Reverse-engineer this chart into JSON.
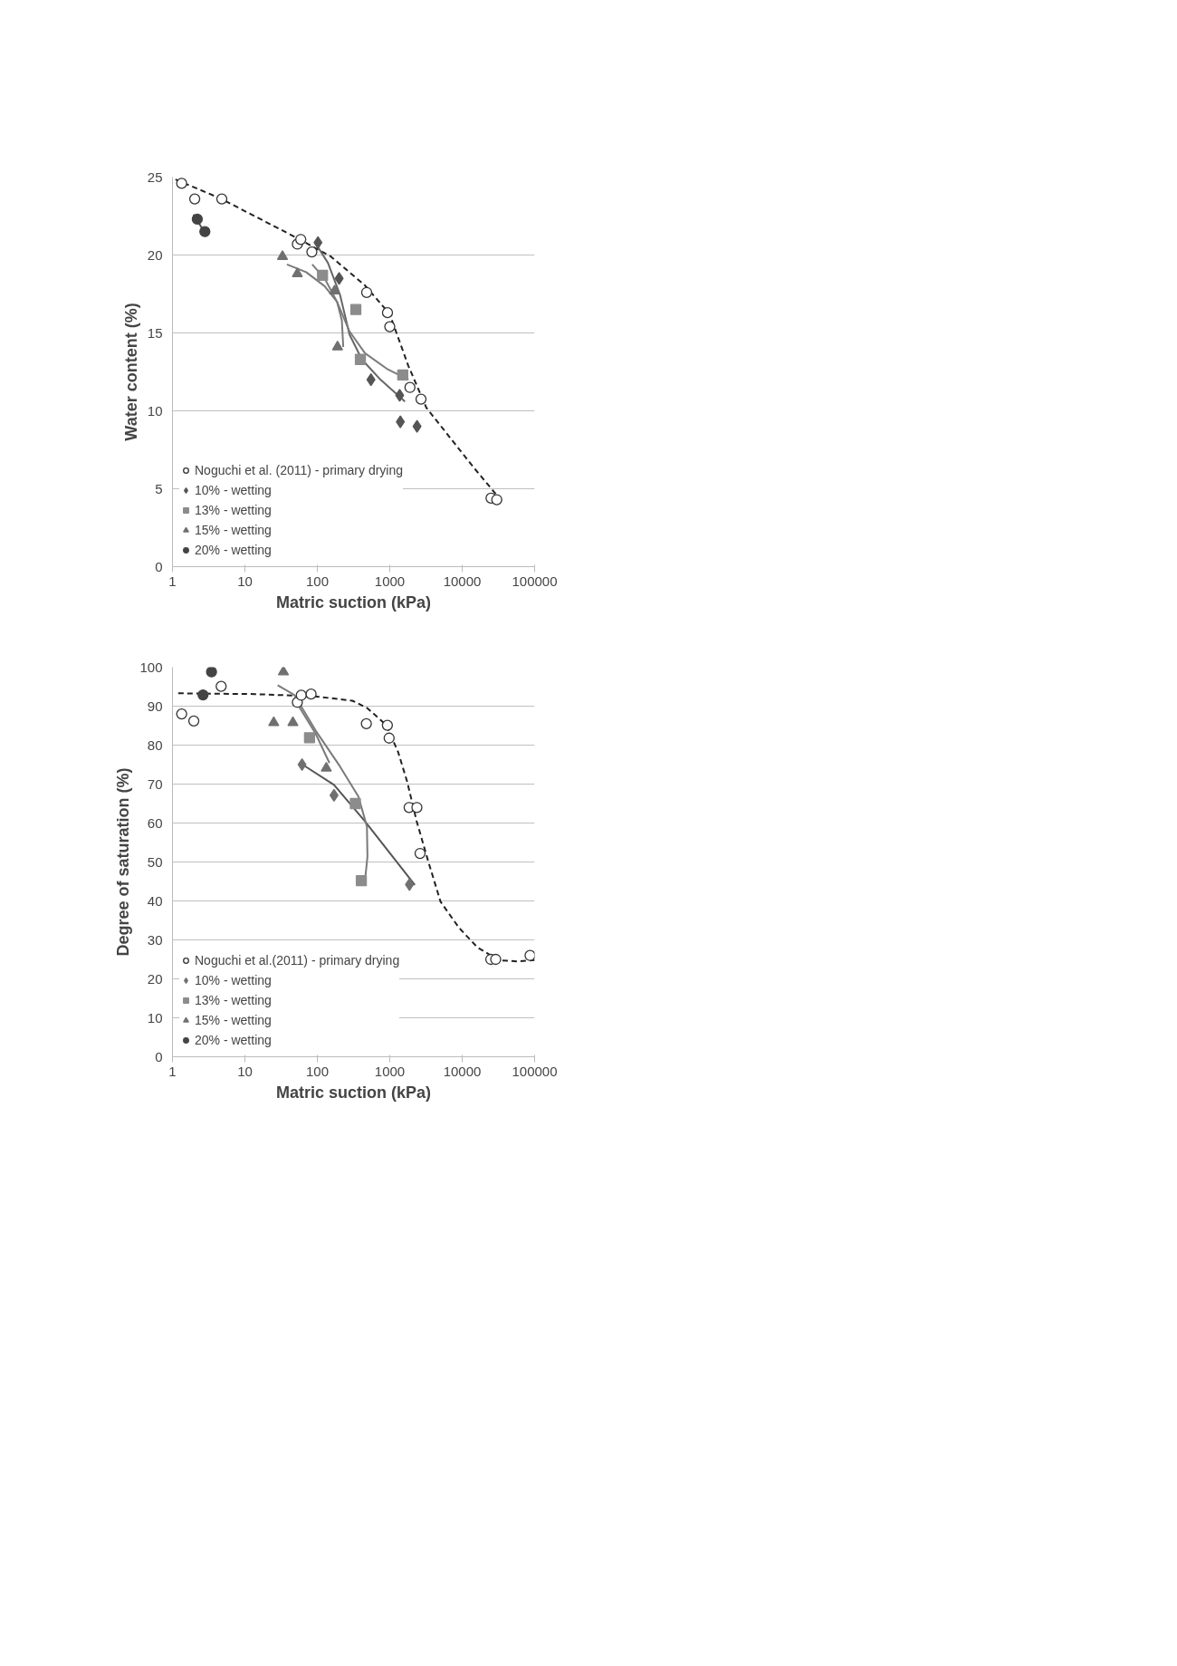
{
  "chart_data": [
    {
      "type": "scatter",
      "xlabel": "Matric suction (kPa)",
      "ylabel": "Water content (%)",
      "log": "x",
      "xlim": [
        1,
        100000
      ],
      "xticks": [
        1,
        10,
        100,
        1000,
        10000,
        100000
      ],
      "ylim": [
        0,
        25
      ],
      "yticks": [
        0,
        5,
        10,
        15,
        20,
        25
      ],
      "grid": "y",
      "legend": "bottom left",
      "series": [
        {
          "name": "Noguchi et al. (2011) - primary drying",
          "color": "#ffffff",
          "marker": "circle",
          "x": [
            1.34,
            2.03,
            4.8,
            53,
            59,
            84,
            480,
            930,
            1000,
            1900,
            2700,
            25000,
            30000
          ],
          "values": [
            24.6,
            23.6,
            23.6,
            20.7,
            21.0,
            20.2,
            17.6,
            16.3,
            15.4,
            11.5,
            10.75,
            4.4,
            4.3
          ]
        },
        {
          "name": "10% - wetting",
          "color": "#555555",
          "marker": "diamond",
          "x": [
            102,
            200,
            550,
            1370,
            1400,
            2380
          ],
          "values": [
            20.8,
            18.5,
            12.0,
            11.0,
            9.3,
            9.0
          ]
        },
        {
          "name": "13% - wetting",
          "color": "#8c8c8c",
          "marker": "square",
          "x": [
            118,
            340,
            393,
            1510
          ],
          "values": [
            18.7,
            16.5,
            13.3,
            12.3
          ]
        },
        {
          "name": "15% - wetting",
          "color": "#707070",
          "marker": "triangle",
          "x": [
            33,
            53,
            173,
            190
          ],
          "values": [
            19.9,
            18.8,
            17.7,
            14.1
          ]
        },
        {
          "name": "20% - wetting",
          "color": "#444444",
          "marker": "circle",
          "x": [
            2.2,
            2.8
          ],
          "values": [
            22.3,
            21.5
          ]
        },
        {
          "type": "line",
          "color": "#222222",
          "line_style": "dashed",
          "x": [
            1.1,
            4.5,
            52,
            154,
            455,
            1000,
            1800,
            3200,
            14200,
            37500
          ],
          "values": [
            24.85,
            23.65,
            21.1,
            19.9,
            18.05,
            16.2,
            12.9,
            10.2,
            6.4,
            4.05
          ]
        },
        {
          "type": "line",
          "color": "#666666",
          "line_style": "solid",
          "x": [
            96,
            140,
            207,
            278,
            412,
            745,
            1620
          ],
          "values": [
            20.7,
            19.5,
            17.4,
            14.9,
            13.3,
            12.0,
            10.6
          ]
        },
        {
          "type": "line",
          "color": "#7a7a7a",
          "line_style": "solid",
          "x": [
            85,
            126,
            187,
            278,
            455,
            910,
            1820
          ],
          "values": [
            19.4,
            18.5,
            17.0,
            15.1,
            13.7,
            12.7,
            12.0
          ]
        },
        {
          "type": "line",
          "color": "#7a7a7a",
          "line_style": "solid",
          "x": [
            38,
            70,
            126,
            187,
            218,
            228
          ],
          "values": [
            19.4,
            18.9,
            18.0,
            17.0,
            15.8,
            14.1
          ]
        },
        {
          "type": "line",
          "color": "#555555",
          "line_style": "solid",
          "x": [
            1.95,
            3.0
          ],
          "values": [
            22.6,
            21.2
          ]
        }
      ]
    },
    {
      "type": "scatter",
      "xlabel": "Matric suction (kPa)",
      "ylabel": "Degree of saturation (%)",
      "log": "x",
      "xlim": [
        1,
        100000
      ],
      "xticks": [
        1,
        10,
        100,
        1000,
        10000,
        100000
      ],
      "ylim": [
        0,
        100
      ],
      "yticks": [
        0,
        10,
        20,
        30,
        40,
        50,
        60,
        70,
        80,
        90,
        100
      ],
      "grid": "y",
      "legend": "bottom left",
      "series": [
        {
          "name": "Noguchi et al.(2011) - primary drying",
          "color": "#ffffff",
          "marker": "circle",
          "x": [
            1.34,
            1.97,
            4.7,
            53,
            60,
            82,
            475,
            927,
            980,
            1850,
            2370,
            2620,
            24800,
            29000,
            86500
          ],
          "values": [
            88,
            86.2,
            95.1,
            91.0,
            92.8,
            93.1,
            85.5,
            85.1,
            81.8,
            64.0,
            64.0,
            52.2,
            25,
            25,
            26
          ]
        },
        {
          "name": "10% - wetting",
          "color": "#707070",
          "marker": "diamond",
          "x": [
            61.5,
            170,
            1870
          ],
          "values": [
            75.0,
            67.1,
            44.2
          ]
        },
        {
          "name": "13% - wetting",
          "color": "#8c8c8c",
          "marker": "square",
          "x": [
            78,
            335,
            405
          ],
          "values": [
            81.9,
            65,
            45.2
          ]
        },
        {
          "name": "15% - wetting",
          "color": "#707070",
          "marker": "triangle",
          "x": [
            34,
            25,
            46,
            133
          ],
          "values": [
            98.8,
            85.8,
            85.8,
            74.1
          ]
        },
        {
          "name": "20% - wetting",
          "color": "#444444",
          "marker": "circle",
          "x": [
            3.46,
            2.64
          ],
          "values": [
            98.8,
            92.9
          ]
        },
        {
          "type": "line",
          "color": "#222222",
          "line_style": "dashed",
          "x": [
            1.2,
            13.7,
            95,
            305,
            490,
            890,
            1300,
            1740,
            2340,
            3430,
            5030,
            9040,
            16200,
            31800,
            57000,
            100000
          ],
          "values": [
            93.3,
            93.1,
            92.5,
            91.4,
            89.5,
            85.2,
            78.3,
            70.6,
            60.6,
            49.9,
            39.8,
            33.1,
            28.1,
            24.8,
            24.5,
            24.8
          ]
        },
        {
          "type": "line",
          "color": "#555555",
          "line_style": "solid",
          "x": [
            67.6,
            170,
            447,
            2220
          ],
          "values": [
            74.6,
            69.8,
            60.6,
            44.1
          ]
        },
        {
          "type": "line",
          "color": "#7a7a7a",
          "line_style": "solid",
          "x": [
            28.3,
            48,
            95,
            206,
            369,
            484,
            492,
            455
          ],
          "values": [
            95.4,
            92.9,
            83.7,
            74.5,
            66.8,
            59.1,
            51.4,
            45.2
          ]
        },
        {
          "type": "line",
          "color": "#7a7a7a",
          "line_style": "solid",
          "x": [
            53,
            95,
            147
          ],
          "values": [
            90.6,
            82.9,
            75.4
          ]
        }
      ]
    }
  ]
}
